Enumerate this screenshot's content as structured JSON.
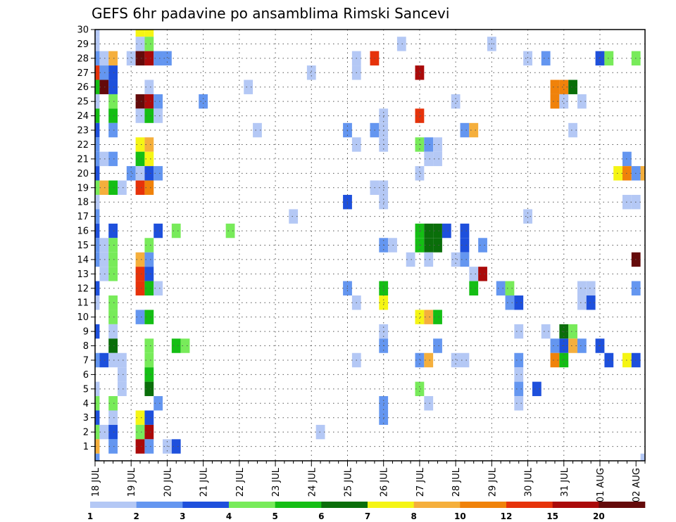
{
  "chart_data": {
    "type": "heatmap",
    "title": "GEFS 6hr padavine po ansamblima Rimski Sancevi",
    "xlabel": "",
    "ylabel": "",
    "x_tick_labels": [
      "18 JUL",
      "19 JUL",
      "20 JUL",
      "21 JUL",
      "22 JUL",
      "23 JUL",
      "24 JUL",
      "25 JUL",
      "26 JUL",
      "27 JUL",
      "28 JUL",
      "29 JUL",
      "30 JUL",
      "31 JUL",
      "01 AUG",
      "02 AUG"
    ],
    "x_range_steps": [
      0,
      61
    ],
    "y_tick_labels": [
      "1",
      "2",
      "3",
      "4",
      "5",
      "6",
      "7",
      "8",
      "9",
      "10",
      "11",
      "12",
      "13",
      "14",
      "15",
      "16",
      "17",
      "18",
      "19",
      "20",
      "21",
      "22",
      "23",
      "24",
      "25",
      "26",
      "27",
      "28",
      "29",
      "30"
    ],
    "y_range": [
      0,
      30
    ],
    "grid": true,
    "legend": {
      "placement": "bottom",
      "levels": [
        "1",
        "2",
        "3",
        "4",
        "5",
        "6",
        "7",
        "8",
        "10",
        "12",
        "15",
        "20"
      ],
      "colors": [
        "#b4c8f5",
        "#6496f0",
        "#1e50dc",
        "#78eb5a",
        "#14be14",
        "#0a6e0a",
        "#f5f514",
        "#f5af3c",
        "#f0820a",
        "#e6320a",
        "#aa0a0a",
        "#640a0a"
      ]
    },
    "cells": [
      [
        0,
        30,
        0
      ],
      [
        0,
        29,
        0
      ],
      [
        0,
        28,
        1
      ],
      [
        0,
        27,
        9
      ],
      [
        0,
        26,
        4
      ],
      [
        0,
        25,
        0
      ],
      [
        0,
        24,
        4
      ],
      [
        0,
        23,
        2
      ],
      [
        0,
        22,
        1
      ],
      [
        0,
        21,
        1
      ],
      [
        0,
        20,
        2
      ],
      [
        0,
        19,
        3
      ],
      [
        0,
        18,
        0
      ],
      [
        0,
        17,
        1
      ],
      [
        0,
        16,
        2
      ],
      [
        0,
        15,
        1
      ],
      [
        0,
        14,
        1
      ],
      [
        0,
        12,
        2
      ],
      [
        0,
        11,
        0
      ],
      [
        0,
        9,
        2
      ],
      [
        0,
        7,
        1
      ],
      [
        0,
        5,
        0
      ],
      [
        0,
        4,
        3
      ],
      [
        0,
        3,
        2
      ],
      [
        0,
        2,
        3
      ],
      [
        0,
        1,
        7
      ],
      [
        0,
        0,
        1
      ],
      [
        1,
        28,
        0
      ],
      [
        1,
        27,
        1
      ],
      [
        1,
        26,
        11
      ],
      [
        1,
        21,
        0
      ],
      [
        1,
        19,
        7
      ],
      [
        1,
        15,
        0
      ],
      [
        1,
        14,
        0
      ],
      [
        1,
        13,
        0
      ],
      [
        1,
        7,
        2
      ],
      [
        1,
        2,
        0
      ],
      [
        2,
        28,
        7
      ],
      [
        2,
        27,
        2
      ],
      [
        2,
        26,
        2
      ],
      [
        2,
        25,
        3
      ],
      [
        2,
        24,
        4
      ],
      [
        2,
        23,
        1
      ],
      [
        2,
        21,
        1
      ],
      [
        2,
        19,
        4
      ],
      [
        2,
        16,
        2
      ],
      [
        2,
        15,
        3
      ],
      [
        2,
        14,
        3
      ],
      [
        2,
        13,
        3
      ],
      [
        2,
        11,
        3
      ],
      [
        2,
        10,
        3
      ],
      [
        2,
        9,
        0
      ],
      [
        2,
        8,
        5
      ],
      [
        2,
        7,
        0
      ],
      [
        2,
        4,
        3
      ],
      [
        2,
        3,
        0
      ],
      [
        2,
        2,
        2
      ],
      [
        2,
        1,
        1
      ],
      [
        3,
        19,
        0
      ],
      [
        3,
        7,
        0
      ],
      [
        3,
        6,
        0
      ],
      [
        3,
        5,
        0
      ],
      [
        4,
        28,
        0
      ],
      [
        4,
        20,
        1
      ],
      [
        5,
        30,
        6
      ],
      [
        5,
        29,
        0
      ],
      [
        5,
        28,
        11
      ],
      [
        5,
        25,
        11
      ],
      [
        5,
        24,
        0
      ],
      [
        5,
        22,
        6
      ],
      [
        5,
        21,
        4
      ],
      [
        5,
        20,
        0
      ],
      [
        5,
        19,
        9
      ],
      [
        5,
        14,
        7
      ],
      [
        5,
        13,
        9
      ],
      [
        5,
        12,
        9
      ],
      [
        5,
        10,
        1
      ],
      [
        5,
        3,
        6
      ],
      [
        5,
        2,
        3
      ],
      [
        5,
        1,
        10
      ],
      [
        6,
        30,
        6
      ],
      [
        6,
        29,
        3
      ],
      [
        6,
        28,
        10
      ],
      [
        6,
        26,
        0
      ],
      [
        6,
        25,
        10
      ],
      [
        6,
        24,
        4
      ],
      [
        6,
        22,
        7
      ],
      [
        6,
        21,
        6
      ],
      [
        6,
        20,
        2
      ],
      [
        6,
        19,
        8
      ],
      [
        6,
        15,
        3
      ],
      [
        6,
        14,
        1
      ],
      [
        6,
        13,
        2
      ],
      [
        6,
        12,
        4
      ],
      [
        6,
        10,
        4
      ],
      [
        6,
        8,
        3
      ],
      [
        6,
        7,
        3
      ],
      [
        6,
        6,
        4
      ],
      [
        6,
        5,
        5
      ],
      [
        6,
        3,
        2
      ],
      [
        6,
        2,
        10
      ],
      [
        6,
        1,
        1
      ],
      [
        7,
        28,
        1
      ],
      [
        7,
        25,
        1
      ],
      [
        7,
        24,
        0
      ],
      [
        7,
        20,
        1
      ],
      [
        7,
        16,
        2
      ],
      [
        7,
        12,
        0
      ],
      [
        7,
        4,
        1
      ],
      [
        8,
        28,
        1
      ],
      [
        8,
        1,
        0
      ],
      [
        9,
        16,
        3
      ],
      [
        9,
        8,
        4
      ],
      [
        9,
        1,
        2
      ],
      [
        10,
        8,
        3
      ],
      [
        12,
        25,
        1
      ],
      [
        15,
        16,
        3
      ],
      [
        17,
        26,
        0
      ],
      [
        18,
        23,
        0
      ],
      [
        22,
        17,
        0
      ],
      [
        24,
        27,
        0
      ],
      [
        25,
        2,
        0
      ],
      [
        28,
        23,
        1
      ],
      [
        28,
        18,
        2
      ],
      [
        28,
        12,
        1
      ],
      [
        29,
        28,
        0
      ],
      [
        29,
        27,
        0
      ],
      [
        29,
        22,
        0
      ],
      [
        29,
        11,
        0
      ],
      [
        29,
        7,
        0
      ],
      [
        31,
        28,
        9
      ],
      [
        31,
        23,
        1
      ],
      [
        31,
        19,
        0
      ],
      [
        32,
        24,
        0
      ],
      [
        32,
        23,
        0
      ],
      [
        32,
        22,
        0
      ],
      [
        32,
        19,
        0
      ],
      [
        32,
        18,
        0
      ],
      [
        32,
        15,
        1
      ],
      [
        32,
        12,
        4
      ],
      [
        32,
        11,
        6
      ],
      [
        32,
        9,
        0
      ],
      [
        32,
        8,
        1
      ],
      [
        32,
        4,
        1
      ],
      [
        32,
        3,
        1
      ],
      [
        33,
        15,
        0
      ],
      [
        34,
        29,
        0
      ],
      [
        35,
        14,
        0
      ],
      [
        36,
        27,
        10
      ],
      [
        36,
        24,
        9
      ],
      [
        36,
        22,
        3
      ],
      [
        36,
        20,
        0
      ],
      [
        36,
        16,
        4
      ],
      [
        36,
        15,
        4
      ],
      [
        36,
        10,
        6
      ],
      [
        36,
        7,
        1
      ],
      [
        36,
        5,
        3
      ],
      [
        37,
        22,
        1
      ],
      [
        37,
        21,
        0
      ],
      [
        37,
        16,
        5
      ],
      [
        37,
        15,
        5
      ],
      [
        37,
        14,
        0
      ],
      [
        37,
        10,
        7
      ],
      [
        37,
        7,
        7
      ],
      [
        37,
        4,
        0
      ],
      [
        38,
        22,
        0
      ],
      [
        38,
        21,
        0
      ],
      [
        38,
        16,
        5
      ],
      [
        38,
        15,
        5
      ],
      [
        38,
        10,
        4
      ],
      [
        38,
        8,
        1
      ],
      [
        39,
        16,
        2
      ],
      [
        40,
        25,
        0
      ],
      [
        40,
        14,
        0
      ],
      [
        40,
        7,
        0
      ],
      [
        41,
        23,
        1
      ],
      [
        41,
        16,
        2
      ],
      [
        41,
        15,
        2
      ],
      [
        41,
        14,
        1
      ],
      [
        41,
        7,
        0
      ],
      [
        42,
        23,
        7
      ],
      [
        42,
        13,
        0
      ],
      [
        42,
        12,
        4
      ],
      [
        43,
        15,
        1
      ],
      [
        43,
        13,
        10
      ],
      [
        44,
        29,
        0
      ],
      [
        45,
        12,
        1
      ],
      [
        46,
        12,
        3
      ],
      [
        46,
        11,
        1
      ],
      [
        47,
        11,
        2
      ],
      [
        47,
        9,
        0
      ],
      [
        47,
        7,
        1
      ],
      [
        47,
        6,
        0
      ],
      [
        47,
        5,
        1
      ],
      [
        47,
        4,
        0
      ],
      [
        48,
        28,
        0
      ],
      [
        48,
        17,
        0
      ],
      [
        49,
        5,
        2
      ],
      [
        50,
        28,
        1
      ],
      [
        50,
        9,
        0
      ],
      [
        51,
        26,
        8
      ],
      [
        51,
        25,
        8
      ],
      [
        51,
        8,
        1
      ],
      [
        51,
        7,
        8
      ],
      [
        52,
        26,
        8
      ],
      [
        52,
        25,
        0
      ],
      [
        52,
        9,
        5
      ],
      [
        52,
        8,
        2
      ],
      [
        52,
        7,
        4
      ],
      [
        53,
        26,
        5
      ],
      [
        53,
        23,
        0
      ],
      [
        53,
        9,
        3
      ],
      [
        53,
        8,
        7
      ],
      [
        54,
        25,
        0
      ],
      [
        54,
        12,
        0
      ],
      [
        54,
        11,
        0
      ],
      [
        54,
        8,
        1
      ],
      [
        55,
        12,
        0
      ],
      [
        55,
        11,
        2
      ],
      [
        56,
        28,
        2
      ],
      [
        56,
        8,
        2
      ],
      [
        57,
        28,
        3
      ],
      [
        57,
        7,
        2
      ],
      [
        58,
        20,
        6
      ],
      [
        59,
        21,
        1
      ],
      [
        59,
        20,
        8
      ],
      [
        59,
        18,
        0
      ],
      [
        59,
        7,
        6
      ],
      [
        60,
        28,
        3
      ],
      [
        60,
        20,
        1
      ],
      [
        60,
        18,
        0
      ],
      [
        60,
        14,
        11
      ],
      [
        60,
        12,
        1
      ],
      [
        60,
        7,
        2
      ],
      [
        61,
        20,
        7
      ],
      [
        61,
        0,
        0
      ]
    ]
  }
}
